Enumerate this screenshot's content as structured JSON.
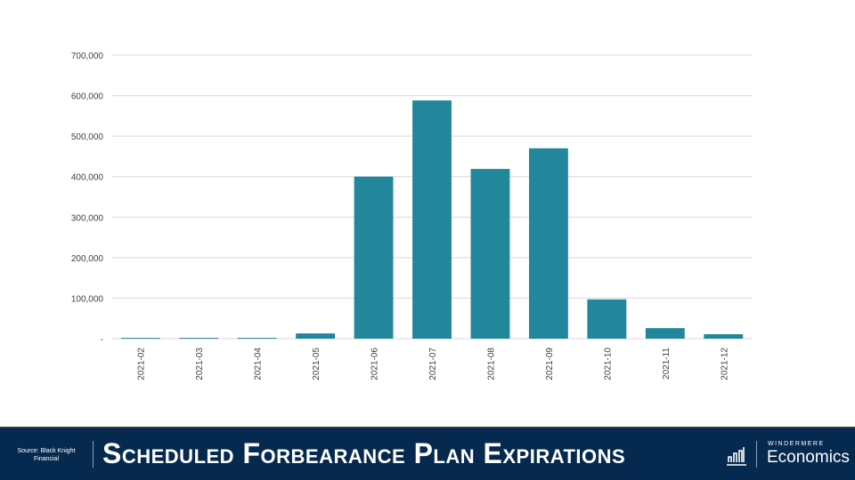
{
  "chart_data": {
    "type": "bar",
    "title": "Scheduled Forbearance Plan Expirations",
    "xlabel": "",
    "ylabel": "",
    "categories": [
      "2021-02",
      "2021-03",
      "2021-04",
      "2021-05",
      "2021-06",
      "2021-07",
      "2021-08",
      "2021-09",
      "2021-10",
      "2021-11",
      "2021-12"
    ],
    "values": [
      2000,
      2000,
      2000,
      13000,
      400000,
      588000,
      419000,
      470000,
      97000,
      26000,
      11000
    ],
    "ylim": [
      0,
      700000
    ],
    "yticks": [
      0,
      100000,
      200000,
      300000,
      400000,
      500000,
      600000,
      700000
    ],
    "ytick_labels": [
      "-",
      "100,000",
      "200,000",
      "300,000",
      "400,000",
      "500,000",
      "600,000",
      "700,000"
    ],
    "grid": true,
    "bar_color": "#23879b"
  },
  "footer": {
    "source": "Source: Black Knight Financial",
    "title": "Scheduled Forbearance Plan Expirations",
    "brand_top": "WINDERMERE",
    "brand": "Economics"
  }
}
